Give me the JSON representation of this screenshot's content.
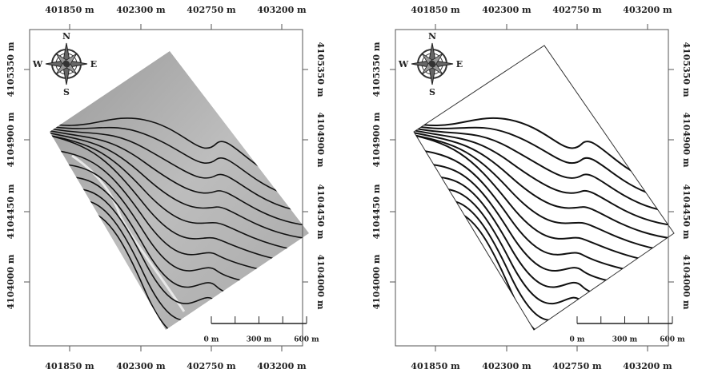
{
  "maps": [
    {
      "x_labels_top": [
        "401850 m",
        "402300 m",
        "402750 m",
        "403200 m"
      ],
      "x_labels_bottom": [
        "401850 m",
        "402300 m",
        "402750 m",
        "403200 m"
      ],
      "y_labels_left": [
        "4105350 m",
        "4104900 m",
        "4104450 m",
        "4104000 m"
      ],
      "y_labels_right": [
        "4105350 m",
        "4104900 m",
        "4104450 m",
        "4104000 m"
      ],
      "compass": {
        "north": "N",
        "east": "E",
        "south": "S",
        "west": "W"
      },
      "scale_labels": [
        "0 m",
        "300 m",
        "600 m"
      ]
    },
    {
      "x_labels_top": [
        "401850 m",
        "402300 m",
        "402750 m",
        "403200 m"
      ],
      "x_labels_bottom": [
        "401850 m",
        "402300 m",
        "402750 m",
        "403200 m"
      ],
      "y_labels_left": [
        "4105350 m",
        "4104900 m",
        "4104450 m",
        "4104000 m"
      ],
      "y_labels_right": [
        "4105350 m",
        "4104900 m",
        "4104450 m",
        "4104000 m"
      ],
      "compass": {
        "north": "N",
        "east": "E",
        "south": "S",
        "west": "W"
      },
      "scale_labels": [
        "0 m",
        "300 m",
        "600 m"
      ]
    }
  ]
}
